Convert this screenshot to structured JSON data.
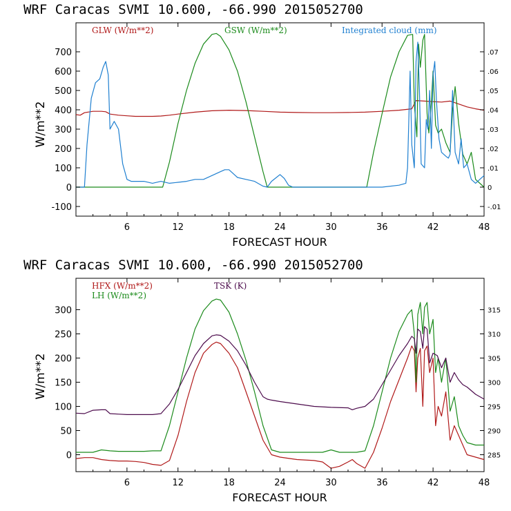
{
  "chart_data": [
    {
      "type": "line",
      "title": "WRF  Caracas SVMI  10.600, -66.990  2015052700",
      "xlabel": "FORECAST HOUR",
      "ylabel": "W/m**2",
      "xlim": [
        0,
        48
      ],
      "ylim": [
        -150,
        850
      ],
      "xticks": [
        "6",
        "12",
        "18",
        "24",
        "30",
        "36",
        "42",
        "48"
      ],
      "yticks": [
        "-100",
        "0",
        "100",
        "200",
        "300",
        "400",
        "500",
        "600",
        "700"
      ],
      "right_ylim": [
        -0.015,
        0.085
      ],
      "right_yticks": [
        "-.01",
        "0",
        ".01",
        ".02",
        ".03",
        ".04",
        ".05",
        ".06",
        ".07"
      ],
      "series": [
        {
          "name": "GLW (W/m**2)",
          "color": "#b01818",
          "axis": "left",
          "x": [
            0,
            0.5,
            1,
            2,
            3,
            3.5,
            4,
            5,
            6,
            7,
            8,
            9,
            10,
            11,
            12,
            14,
            16,
            18,
            20,
            22,
            24,
            26,
            28,
            30,
            32,
            34,
            36,
            38,
            39.5,
            40,
            41,
            42,
            43,
            44,
            45,
            46,
            47,
            48
          ],
          "values": [
            375,
            372,
            385,
            392,
            392,
            390,
            378,
            372,
            369,
            366,
            366,
            366,
            368,
            372,
            378,
            388,
            395,
            398,
            396,
            392,
            388,
            386,
            385,
            385,
            386,
            388,
            392,
            398,
            405,
            448,
            445,
            442,
            440,
            445,
            430,
            415,
            405,
            398
          ]
        },
        {
          "name": "GSW (W/m**2)",
          "color": "#1a8a1a",
          "axis": "left",
          "x": [
            0,
            10.2,
            11,
            12,
            13,
            14,
            15,
            16,
            16.5,
            17,
            18,
            19,
            20,
            21,
            22,
            22.5,
            34.2,
            35,
            36,
            37,
            38,
            39,
            39.6,
            39.8,
            40.1,
            40.3,
            40.5,
            40.8,
            41,
            41.3,
            41.5,
            41.8,
            42,
            42.3,
            42.6,
            43,
            43.5,
            44,
            44.3,
            44.6,
            45,
            45.5,
            46,
            46.5,
            47,
            48
          ],
          "values": [
            0,
            0,
            130,
            330,
            500,
            640,
            740,
            790,
            795,
            780,
            710,
            600,
            440,
            260,
            80,
            0,
            0,
            180,
            380,
            570,
            700,
            785,
            790,
            430,
            260,
            740,
            620,
            760,
            790,
            380,
            280,
            440,
            600,
            320,
            280,
            300,
            230,
            180,
            400,
            520,
            330,
            170,
            120,
            180,
            40,
            0
          ]
        },
        {
          "name": "Integrated cloud (mm)",
          "color": "#1e7fd0",
          "axis": "right",
          "x": [
            0,
            1,
            1.3,
            1.8,
            2.3,
            2.8,
            3.2,
            3.5,
            3.8,
            4,
            4.5,
            5,
            5.5,
            6,
            6.5,
            7,
            8,
            9,
            10,
            11,
            12,
            13,
            14,
            15,
            16,
            17,
            17.5,
            18,
            19,
            20,
            21,
            22,
            22.5,
            23,
            24,
            24.5,
            25,
            25.5,
            26,
            30,
            34,
            36,
            38,
            38.8,
            39,
            39.3,
            39.5,
            39.8,
            40,
            40.2,
            40.4,
            40.6,
            41,
            41.2,
            41.4,
            41.6,
            41.8,
            42,
            42.2,
            42.4,
            42.7,
            43,
            43.5,
            43.8,
            44,
            44.3,
            44.6,
            45,
            45.3,
            45.6,
            46,
            46.5,
            47,
            47.5,
            48
          ],
          "values": [
            0,
            0,
            0.022,
            0.046,
            0.054,
            0.056,
            0.062,
            0.065,
            0.058,
            0.03,
            0.034,
            0.03,
            0.012,
            0.004,
            0.003,
            0.003,
            0.003,
            0.002,
            0.003,
            0.002,
            0.0025,
            0.003,
            0.004,
            0.004,
            0.006,
            0.008,
            0.009,
            0.009,
            0.005,
            0.004,
            0.003,
            0.0005,
            0,
            0.003,
            0.0065,
            0.0045,
            0.001,
            0,
            0,
            0,
            0,
            0,
            0.001,
            0.002,
            0.01,
            0.06,
            0.022,
            0.01,
            0.065,
            0.075,
            0.05,
            0.012,
            0.01,
            0.035,
            0.03,
            0.05,
            0.02,
            0.058,
            0.065,
            0.045,
            0.025,
            0.018,
            0.016,
            0.015,
            0.017,
            0.05,
            0.018,
            0.012,
            0.025,
            0.01,
            0.012,
            0.004,
            0.002,
            0.004,
            0.006
          ]
        }
      ]
    },
    {
      "type": "line",
      "title": "WRF  Caracas SVMI  10.600, -66.990  2015052700",
      "xlabel": "FORECAST HOUR",
      "ylabel": "W/m**2",
      "xlim": [
        0,
        48
      ],
      "ylim": [
        -35,
        365
      ],
      "xticks": [
        "6",
        "12",
        "18",
        "24",
        "30",
        "36",
        "42",
        "48"
      ],
      "yticks": [
        "0",
        "50",
        "100",
        "150",
        "200",
        "250",
        "300"
      ],
      "right_ylim": [
        281.5,
        321.5
      ],
      "right_yticks": [
        "285",
        "290",
        "295",
        "300",
        "305",
        "310",
        "315"
      ],
      "series": [
        {
          "name": "HFX (W/m**2)",
          "color": "#b01818",
          "axis": "left",
          "x": [
            0,
            1,
            2,
            3,
            4,
            5,
            6,
            7,
            8,
            9,
            10,
            11,
            12,
            13,
            14,
            15,
            16,
            16.5,
            17,
            18,
            19,
            20,
            21,
            22,
            23,
            24,
            26,
            28,
            29,
            30,
            31,
            32,
            32.5,
            33,
            34,
            35,
            36,
            37,
            38,
            39,
            39.5,
            39.8,
            40,
            40.2,
            40.5,
            40.8,
            41,
            41.3,
            41.6,
            42,
            42.3,
            42.6,
            43,
            43.5,
            44,
            44.5,
            45,
            45.5,
            46,
            47,
            48
          ],
          "values": [
            -8,
            -6,
            -6,
            -10,
            -12,
            -13,
            -13,
            -14,
            -16,
            -20,
            -22,
            -12,
            40,
            110,
            170,
            210,
            228,
            233,
            230,
            210,
            180,
            130,
            80,
            30,
            0,
            -5,
            -10,
            -12,
            -15,
            -28,
            -24,
            -15,
            -10,
            -18,
            -28,
            5,
            55,
            110,
            155,
            200,
            225,
            215,
            130,
            200,
            220,
            100,
            215,
            225,
            170,
            200,
            60,
            100,
            80,
            130,
            30,
            60,
            40,
            20,
            0,
            -5,
            -10
          ]
        },
        {
          "name": "LH (W/m**2)",
          "color": "#1a8a1a",
          "axis": "left",
          "x": [
            0,
            1,
            2,
            3,
            4,
            5,
            6,
            7,
            8,
            9,
            10,
            11,
            12,
            13,
            14,
            15,
            16,
            16.5,
            17,
            18,
            19,
            20,
            21,
            22,
            23,
            24,
            26,
            28,
            29,
            30,
            31,
            32,
            33,
            34,
            35,
            36,
            37,
            38,
            39,
            39.5,
            39.8,
            40,
            40.2,
            40.5,
            40.8,
            41,
            41.3,
            41.6,
            42,
            42.3,
            42.6,
            43,
            43.5,
            44,
            44.5,
            45,
            45.5,
            46,
            47,
            48
          ],
          "values": [
            5,
            5,
            5,
            10,
            8,
            7,
            7,
            7,
            7,
            8,
            8,
            60,
            130,
            200,
            260,
            298,
            318,
            322,
            320,
            295,
            250,
            195,
            130,
            60,
            10,
            5,
            5,
            5,
            5,
            10,
            5,
            5,
            5,
            8,
            60,
            130,
            200,
            255,
            290,
            300,
            250,
            150,
            290,
            315,
            250,
            305,
            315,
            250,
            280,
            170,
            200,
            150,
            200,
            90,
            120,
            60,
            40,
            25,
            20,
            20
          ]
        },
        {
          "name": "TSK (K)",
          "color": "#4b0a4b",
          "axis": "right",
          "x": [
            0,
            1,
            2,
            3,
            3.5,
            4,
            5,
            6,
            7,
            8,
            9,
            10,
            11,
            12,
            13,
            14,
            15,
            16,
            16.5,
            17,
            18,
            19,
            20,
            21,
            22,
            22.5,
            23,
            24,
            26,
            28,
            30,
            32,
            32.5,
            33,
            34,
            35,
            36,
            37,
            38,
            39,
            39.5,
            39.8,
            40,
            40.2,
            40.5,
            40.8,
            41,
            41.3,
            41.6,
            42,
            42.5,
            43,
            43.5,
            44,
            44.5,
            45,
            45.5,
            46,
            47,
            48
          ],
          "values": [
            293.6,
            293.5,
            294.2,
            294.3,
            294.3,
            293.5,
            293.4,
            293.3,
            293.3,
            293.3,
            293.3,
            293.5,
            295.5,
            298.5,
            302,
            305.5,
            308,
            309.6,
            309.8,
            309.7,
            308.5,
            306.5,
            303.5,
            300,
            297,
            296.5,
            296.3,
            296,
            295.5,
            295,
            294.8,
            294.7,
            294.3,
            294.6,
            295,
            296.5,
            299.5,
            302.5,
            305.5,
            308,
            309.5,
            309,
            306,
            311,
            310.5,
            307,
            311.5,
            311,
            304,
            306,
            305.5,
            303,
            305,
            300,
            302,
            300.5,
            299.5,
            299,
            297.5,
            296.5
          ]
        }
      ]
    }
  ]
}
